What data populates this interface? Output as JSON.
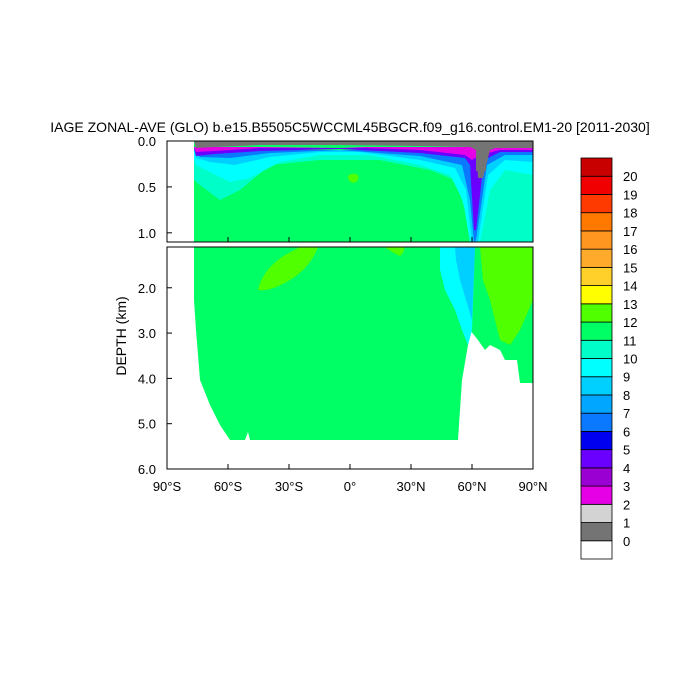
{
  "chart_data": {
    "type": "heatmap",
    "title": "IAGE ZONAL-AVE (GLO) b.e15.B5505C5WCCML45BGCR.f09_g16.control.EM1-20 [2011-2030]",
    "ylabel": "DEPTH (km)",
    "xlabel": "",
    "xlim": [
      -90,
      90
    ],
    "ylim": [
      6.0,
      0.0
    ],
    "x_ticks": [
      {
        "value": -90,
        "label": "90°S"
      },
      {
        "value": -60,
        "label": "60°S"
      },
      {
        "value": -30,
        "label": "30°S"
      },
      {
        "value": 0,
        "label": "0°"
      },
      {
        "value": 30,
        "label": "30°N"
      },
      {
        "value": 60,
        "label": "60°N"
      },
      {
        "value": 90,
        "label": "90°N"
      }
    ],
    "y_ticks_upper": [
      {
        "value": 0.0,
        "label": "0.0"
      },
      {
        "value": 0.5,
        "label": "0.5"
      },
      {
        "value": 1.0,
        "label": "1.0"
      }
    ],
    "y_ticks_lower": [
      {
        "value": 2.0,
        "label": "2.0"
      },
      {
        "value": 3.0,
        "label": "3.0"
      },
      {
        "value": 4.0,
        "label": "4.0"
      },
      {
        "value": 5.0,
        "label": "5.0"
      },
      {
        "value": 6.0,
        "label": "6.0"
      }
    ],
    "colorbar": {
      "labels": [
        "0",
        "1",
        "2",
        "3",
        "4",
        "5",
        "6",
        "7",
        "8",
        "9",
        "10",
        "11",
        "12",
        "13",
        "14",
        "15",
        "16",
        "17",
        "18",
        "19",
        "20"
      ],
      "colors": [
        "#ffffff",
        "#747474",
        "#d3d3d3",
        "#e600e6",
        "#9a00d2",
        "#6a00ff",
        "#0000f0",
        "#0a78ff",
        "#00a6ff",
        "#00d0ff",
        "#00ffff",
        "#00ffc8",
        "#00ff64",
        "#50ff00",
        "#ffff00",
        "#ffd02a",
        "#ffaa2a",
        "#ff9620",
        "#ff7800",
        "#ff3a00",
        "#f00000",
        "#c80000"
      ]
    },
    "deep_fields": [
      {
        "class": 11,
        "color": "#00ff64",
        "region": "deep ocean interior, 78°S to 55°N, below 1.5 km to the seafloor (~5.4 km)"
      },
      {
        "class": 12,
        "color": "#50ff00",
        "region": "tongues near 35°S (0.7–2.0 km) and near 10°N (0.7–1.2 km)"
      },
      {
        "class": 0,
        "color": "#747474",
        "region": "surface layer and Arctic shelf near 62°N"
      }
    ]
  }
}
